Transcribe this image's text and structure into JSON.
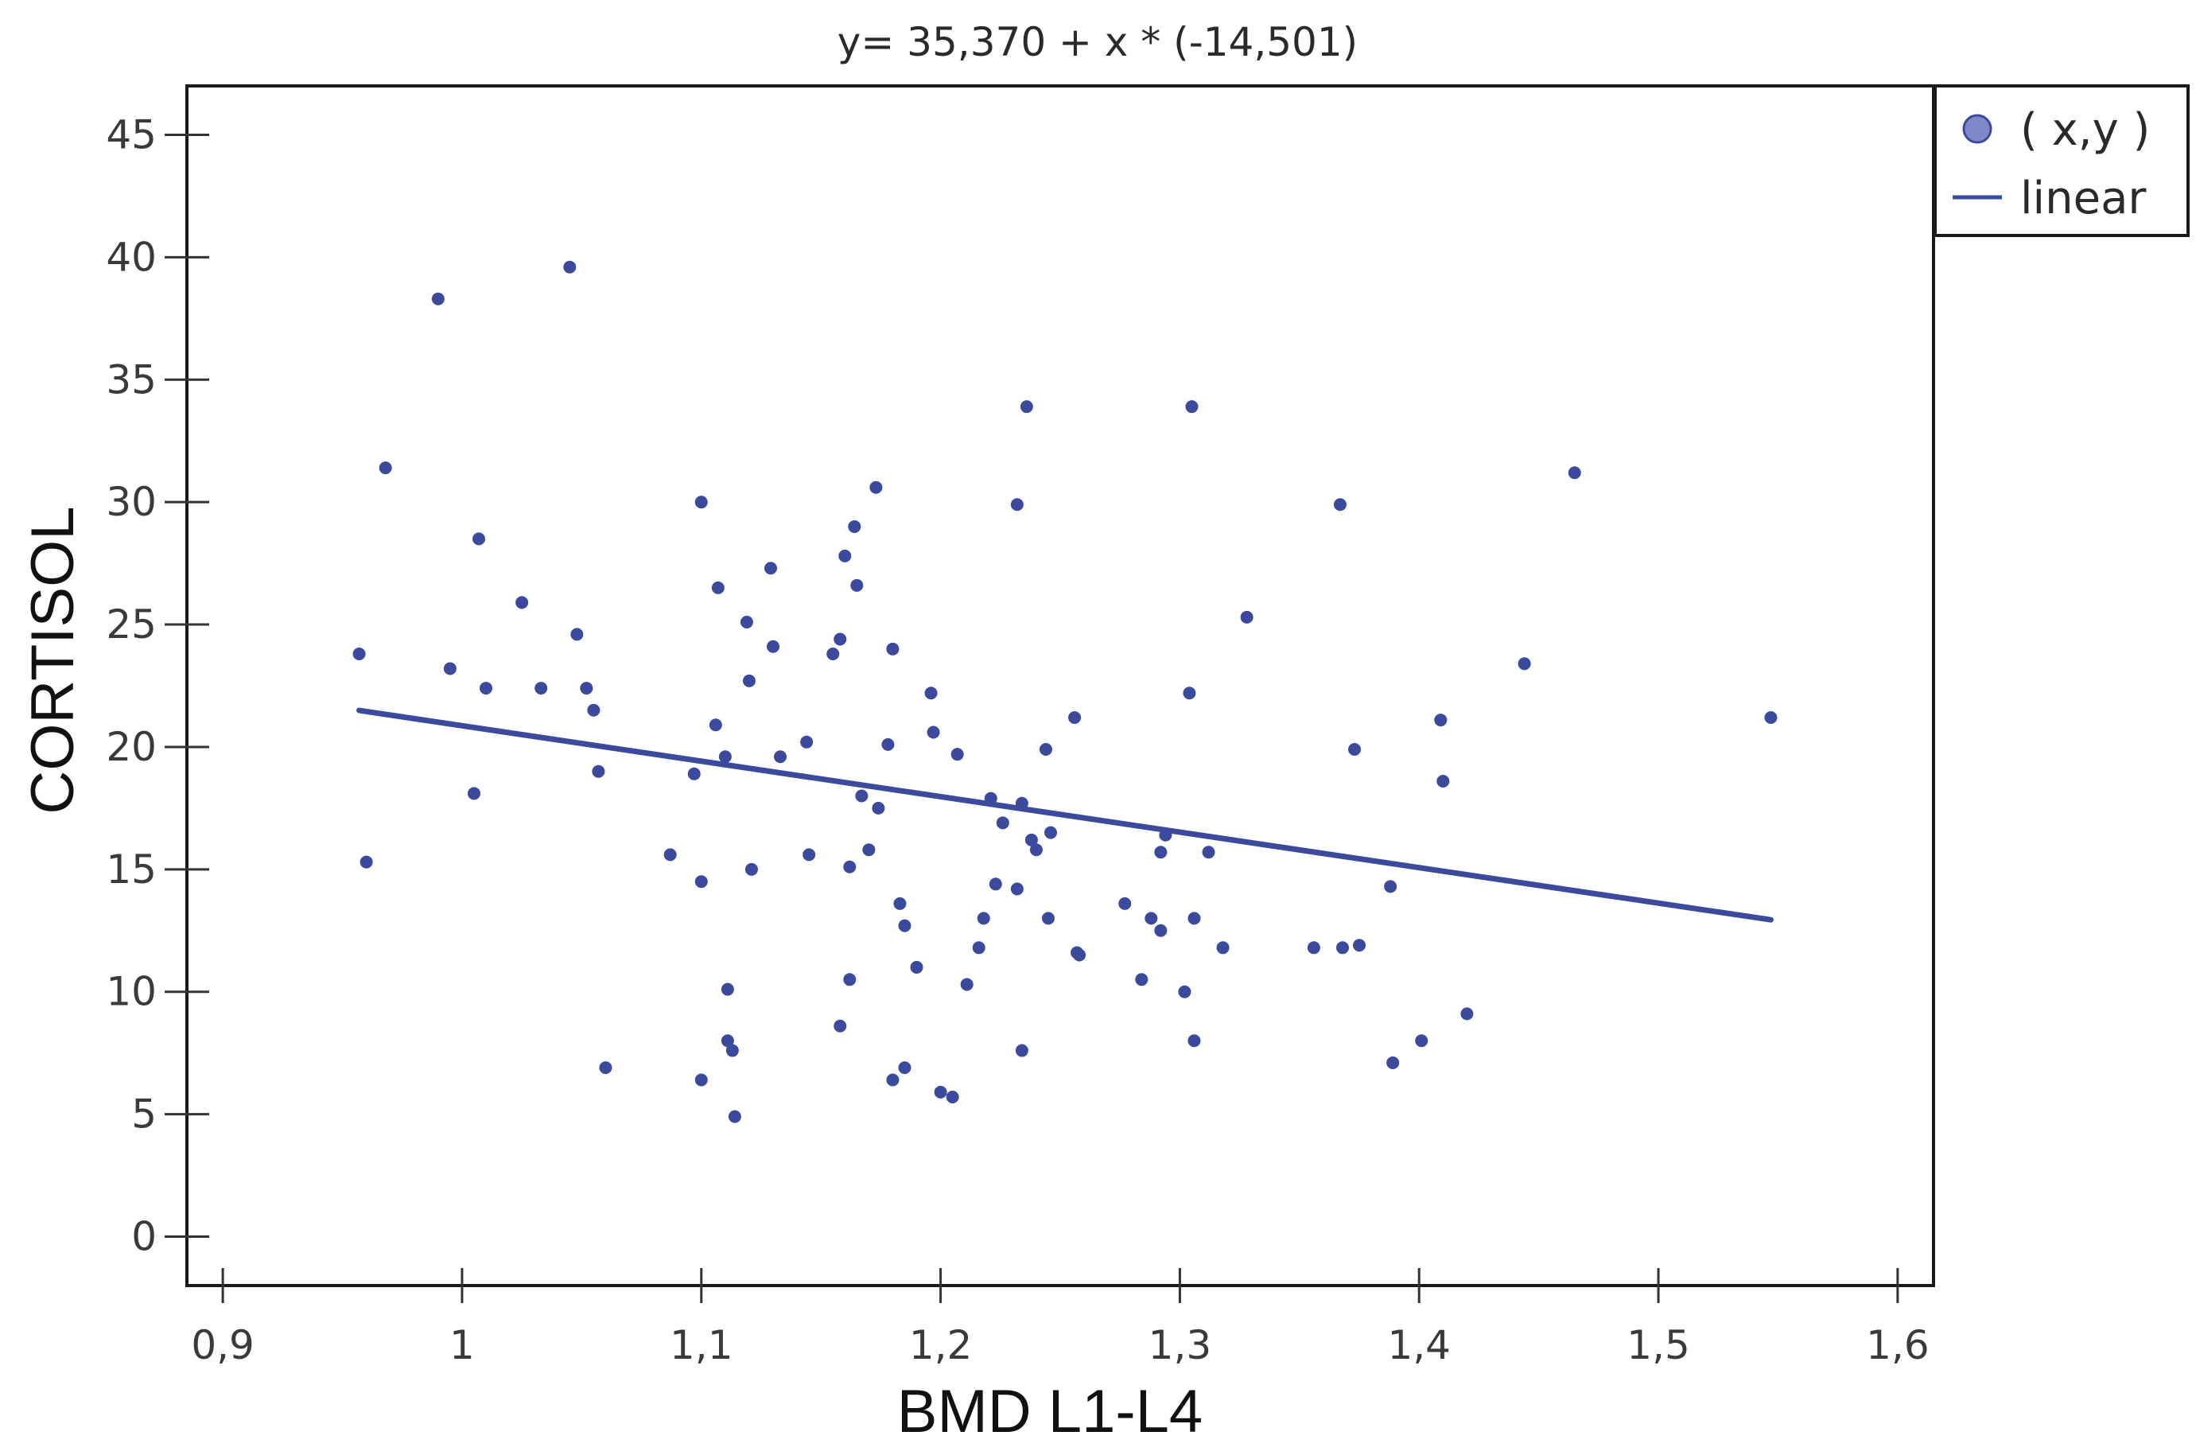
{
  "chart_data": {
    "type": "scatter",
    "title": "y= 35,370 + x * (-14,501)",
    "xlabel": "BMD L1-L4",
    "ylabel": "CORTISOL",
    "xlim": [
      0.885,
      1.615
    ],
    "ylim": [
      -2,
      47
    ],
    "x_ticks": [
      {
        "value": 0.9,
        "label": "0,9"
      },
      {
        "value": 1.0,
        "label": "1"
      },
      {
        "value": 1.1,
        "label": "1,1"
      },
      {
        "value": 1.2,
        "label": "1,2"
      },
      {
        "value": 1.3,
        "label": "1,3"
      },
      {
        "value": 1.4,
        "label": "1,4"
      },
      {
        "value": 1.5,
        "label": "1,5"
      },
      {
        "value": 1.6,
        "label": "1,6"
      }
    ],
    "y_ticks": [
      {
        "value": 0,
        "label": "0"
      },
      {
        "value": 5,
        "label": "5"
      },
      {
        "value": 10,
        "label": "10"
      },
      {
        "value": 15,
        "label": "15"
      },
      {
        "value": 20,
        "label": "20"
      },
      {
        "value": 25,
        "label": "25"
      },
      {
        "value": 30,
        "label": "30"
      },
      {
        "value": 35,
        "label": "35"
      },
      {
        "value": 40,
        "label": "40"
      },
      {
        "value": 45,
        "label": "45"
      }
    ],
    "grid": false,
    "legend_position": "top-right, outside plot",
    "series": [
      {
        "name": "( x,y )",
        "kind": "points",
        "color": "#3b4a9c",
        "points": [
          [
            0.957,
            23.8
          ],
          [
            0.96,
            15.3
          ],
          [
            0.968,
            31.4
          ],
          [
            0.99,
            38.3
          ],
          [
            0.995,
            23.2
          ],
          [
            1.005,
            18.1
          ],
          [
            1.007,
            28.5
          ],
          [
            1.01,
            22.4
          ],
          [
            1.025,
            25.9
          ],
          [
            1.033,
            22.4
          ],
          [
            1.045,
            39.6
          ],
          [
            1.048,
            24.6
          ],
          [
            1.052,
            22.4
          ],
          [
            1.055,
            21.5
          ],
          [
            1.057,
            19.0
          ],
          [
            1.06,
            6.9
          ],
          [
            1.087,
            15.6
          ],
          [
            1.097,
            18.9
          ],
          [
            1.1,
            30.0
          ],
          [
            1.1,
            14.5
          ],
          [
            1.1,
            6.4
          ],
          [
            1.106,
            20.9
          ],
          [
            1.107,
            26.5
          ],
          [
            1.11,
            19.6
          ],
          [
            1.111,
            10.1
          ],
          [
            1.111,
            8.0
          ],
          [
            1.113,
            7.6
          ],
          [
            1.114,
            4.9
          ],
          [
            1.119,
            25.1
          ],
          [
            1.12,
            22.7
          ],
          [
            1.121,
            15.0
          ],
          [
            1.129,
            27.3
          ],
          [
            1.13,
            24.1
          ],
          [
            1.133,
            19.6
          ],
          [
            1.144,
            20.2
          ],
          [
            1.145,
            15.6
          ],
          [
            1.155,
            23.8
          ],
          [
            1.158,
            24.4
          ],
          [
            1.158,
            8.6
          ],
          [
            1.16,
            27.8
          ],
          [
            1.162,
            15.1
          ],
          [
            1.162,
            10.5
          ],
          [
            1.164,
            29.0
          ],
          [
            1.165,
            26.6
          ],
          [
            1.167,
            18.0
          ],
          [
            1.17,
            15.8
          ],
          [
            1.173,
            30.6
          ],
          [
            1.174,
            17.5
          ],
          [
            1.178,
            20.1
          ],
          [
            1.18,
            24.0
          ],
          [
            1.18,
            6.4
          ],
          [
            1.183,
            13.6
          ],
          [
            1.185,
            12.7
          ],
          [
            1.185,
            6.9
          ],
          [
            1.19,
            11.0
          ],
          [
            1.196,
            22.2
          ],
          [
            1.197,
            20.6
          ],
          [
            1.2,
            5.9
          ],
          [
            1.205,
            5.7
          ],
          [
            1.207,
            19.7
          ],
          [
            1.211,
            10.3
          ],
          [
            1.216,
            11.8
          ],
          [
            1.218,
            13.0
          ],
          [
            1.221,
            17.9
          ],
          [
            1.223,
            14.4
          ],
          [
            1.226,
            16.9
          ],
          [
            1.232,
            29.9
          ],
          [
            1.232,
            14.2
          ],
          [
            1.234,
            17.7
          ],
          [
            1.234,
            7.6
          ],
          [
            1.236,
            33.9
          ],
          [
            1.238,
            16.2
          ],
          [
            1.24,
            15.8
          ],
          [
            1.244,
            19.9
          ],
          [
            1.245,
            13.0
          ],
          [
            1.246,
            16.5
          ],
          [
            1.256,
            21.2
          ],
          [
            1.257,
            11.6
          ],
          [
            1.258,
            11.5
          ],
          [
            1.277,
            13.6
          ],
          [
            1.284,
            10.5
          ],
          [
            1.288,
            13.0
          ],
          [
            1.292,
            12.5
          ],
          [
            1.292,
            15.7
          ],
          [
            1.294,
            16.4
          ],
          [
            1.302,
            10.0
          ],
          [
            1.304,
            22.2
          ],
          [
            1.305,
            33.9
          ],
          [
            1.306,
            13.0
          ],
          [
            1.306,
            8.0
          ],
          [
            1.312,
            15.7
          ],
          [
            1.318,
            11.8
          ],
          [
            1.328,
            25.3
          ],
          [
            1.356,
            11.8
          ],
          [
            1.367,
            29.9
          ],
          [
            1.368,
            11.8
          ],
          [
            1.373,
            19.9
          ],
          [
            1.375,
            11.9
          ],
          [
            1.388,
            14.3
          ],
          [
            1.389,
            7.1
          ],
          [
            1.401,
            8.0
          ],
          [
            1.409,
            21.1
          ],
          [
            1.41,
            18.6
          ],
          [
            1.42,
            9.1
          ],
          [
            1.444,
            23.4
          ],
          [
            1.465,
            31.2
          ],
          [
            1.547,
            21.2
          ]
        ]
      },
      {
        "name": "linear",
        "kind": "line",
        "color": "#3b4a9c",
        "points": [
          [
            0.957,
            21.49
          ],
          [
            1.547,
            12.94
          ]
        ]
      }
    ]
  }
}
